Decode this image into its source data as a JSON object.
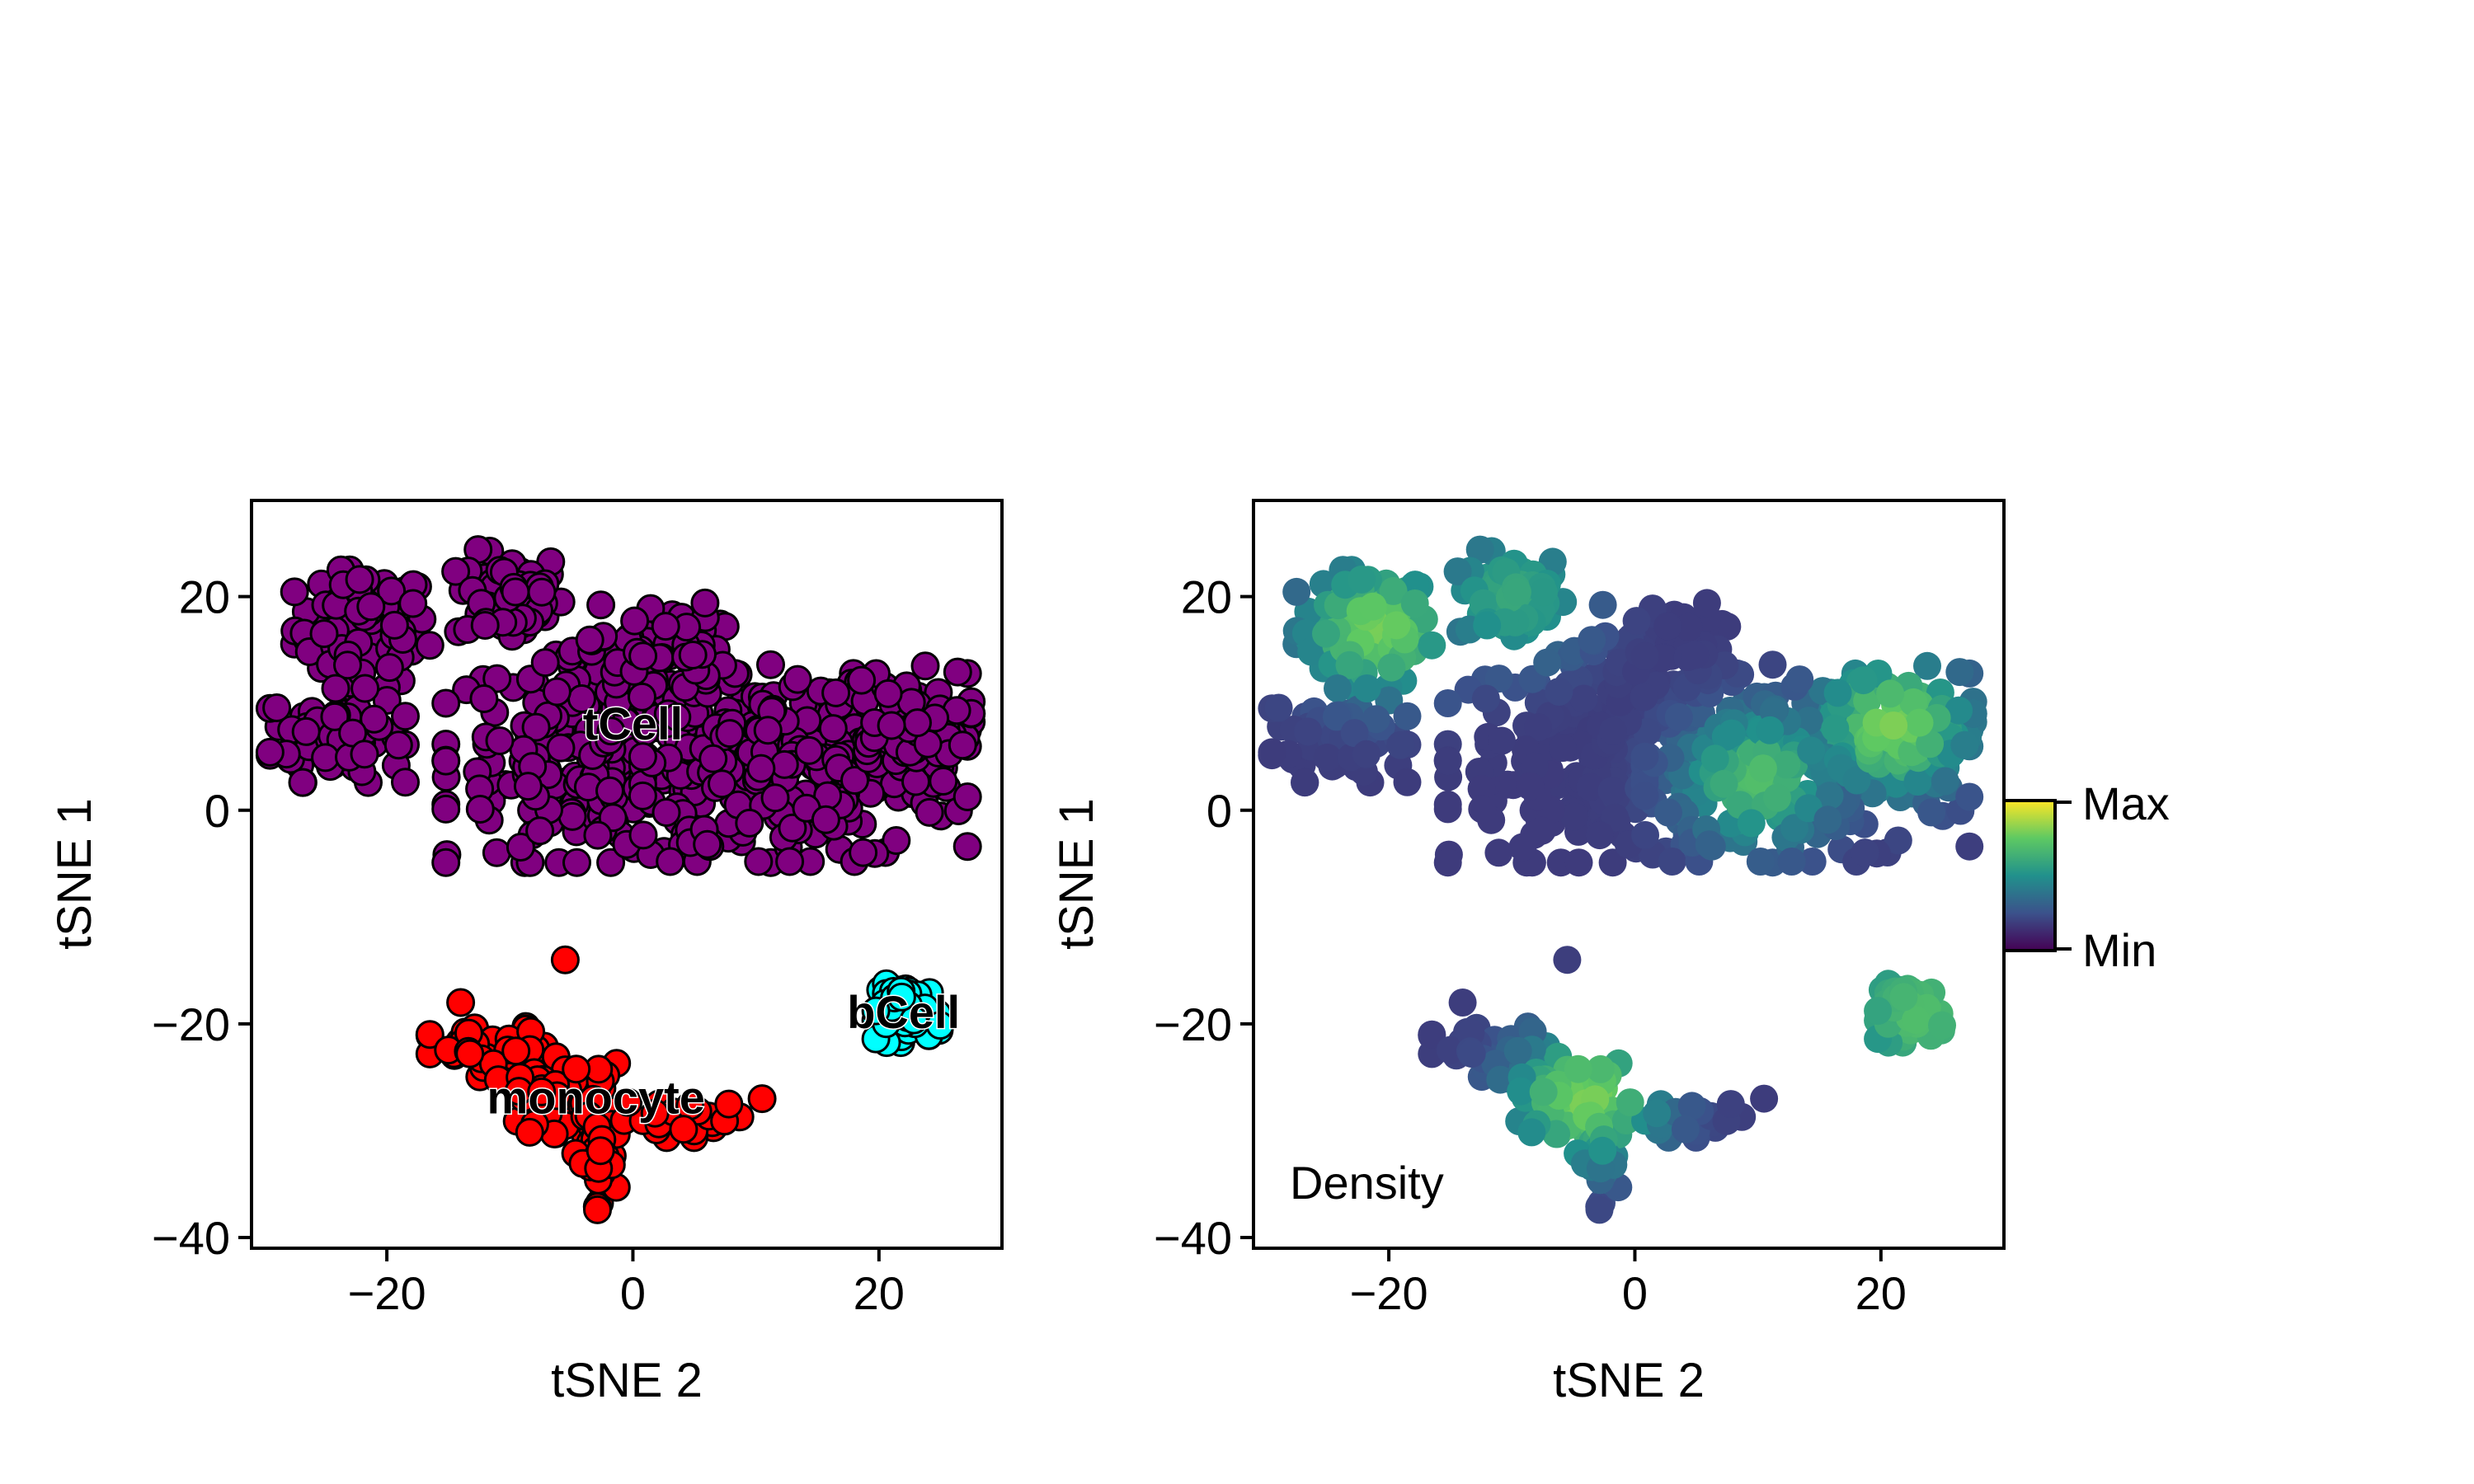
{
  "chart_data": [
    {
      "type": "scatter",
      "panel": "clusters",
      "xlabel": "tSNE 2",
      "ylabel": "tSNE 1",
      "xlim": [
        -31,
        30
      ],
      "ylim": [
        -41,
        29
      ],
      "x_ticks": [
        -20,
        0,
        20
      ],
      "y_ticks": [
        20,
        0,
        -20,
        -40
      ],
      "x_tick_labels": [
        "−20",
        "0",
        "20"
      ],
      "y_tick_labels": [
        "20",
        "0",
        "−20",
        "−40"
      ],
      "grid": false,
      "series": [
        {
          "name": "tCell",
          "color": "#800080",
          "edge_color": "#000000",
          "regions": [
            {
              "cx": -22,
              "cy": 17,
              "rx": 5,
              "ry": 5,
              "n": 90
            },
            {
              "cx": -10,
              "cy": 20,
              "rx": 4,
              "ry": 4,
              "n": 60
            },
            {
              "cx": -24,
              "cy": 7,
              "rx": 5,
              "ry": 4,
              "n": 70
            },
            {
              "cx": -2,
              "cy": 5,
              "rx": 12,
              "ry": 9,
              "n": 260
            },
            {
              "cx": 14,
              "cy": 4,
              "rx": 12,
              "ry": 8,
              "n": 220
            },
            {
              "cx": 22,
              "cy": 8,
              "rx": 5,
              "ry": 5,
              "n": 80
            },
            {
              "cx": 2,
              "cy": 15,
              "rx": 5,
              "ry": 4,
              "n": 60
            }
          ]
        },
        {
          "name": "monocyte",
          "color": "#ff0000",
          "edge_color": "#000000",
          "regions": [
            {
              "cx": -11,
              "cy": -23,
              "rx": 5,
              "ry": 2.5,
              "n": 60
            },
            {
              "cx": -5,
              "cy": -27,
              "rx": 4,
              "ry": 3,
              "n": 60
            },
            {
              "cx": -3,
              "cy": -33,
              "rx": 1.5,
              "ry": 4,
              "n": 30
            },
            {
              "cx": 4,
              "cy": -29,
              "rx": 5,
              "ry": 1.5,
              "n": 30
            }
          ],
          "points": [
            [
              -5.5,
              -14
            ],
            [
              10.5,
              -27
            ],
            [
              7.8,
              -27.5
            ],
            [
              -14,
              -18
            ]
          ]
        },
        {
          "name": "bCell",
          "color": "#00ffff",
          "edge_color": "#000000",
          "regions": [
            {
              "cx": 22.5,
              "cy": -19,
              "rx": 2.5,
              "ry": 2.5,
              "n": 60
            }
          ]
        }
      ],
      "labels": [
        {
          "text": "tCell",
          "x": 0,
          "y": 8
        },
        {
          "text": "monocyte",
          "x": -3,
          "y": -27
        },
        {
          "text": "bCell",
          "x": 22,
          "y": -19
        }
      ]
    },
    {
      "type": "scatter",
      "panel": "density",
      "annotation": "Density",
      "xlabel": "tSNE 2",
      "ylabel": "tSNE 1",
      "xlim": [
        -31,
        30
      ],
      "ylim": [
        -41,
        29
      ],
      "x_ticks": [
        -20,
        0,
        20
      ],
      "y_ticks": [
        20,
        0,
        -20,
        -40
      ],
      "x_tick_labels": [
        "−20",
        "0",
        "20"
      ],
      "y_tick_labels": [
        "20",
        "0",
        "−20",
        "−40"
      ],
      "grid": false,
      "colormap": "viridis",
      "colorbar": {
        "max_label": "Max",
        "min_label": "Min"
      },
      "peaks": [
        {
          "x": -21,
          "y": 17,
          "level": 0.8
        },
        {
          "x": -10,
          "y": 20,
          "level": 0.6
        },
        {
          "x": 10,
          "y": 3,
          "level": 0.7
        },
        {
          "x": 21,
          "y": 8,
          "level": 0.8
        },
        {
          "x": -4,
          "y": -27,
          "level": 0.8
        },
        {
          "x": 23,
          "y": -19,
          "level": 0.7
        }
      ]
    }
  ]
}
